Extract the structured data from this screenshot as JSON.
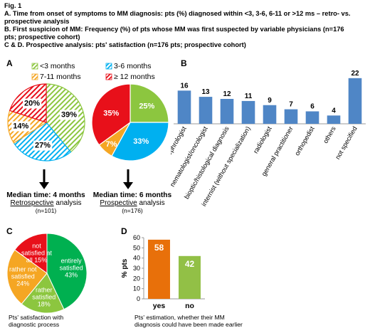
{
  "figure": {
    "fig_label": "Fig. 1",
    "line_a": "A. Time from onset of symptoms to MM diagnosis: pts (%) diagnosed within <3, 3-6, 6-11 or >12 ms – retro- vs.",
    "line_a2": "prospective analysis",
    "line_b": "B. First suspicion of MM: Frequency (%) of pts whose MM was first suspected by variable physicians (n=176",
    "line_b2": "pts; prospective cohort)",
    "line_cd": "C & D. Prospective analysis: pts' satisfaction  (n=176 pts; prospective cohort)"
  },
  "panel_letters": {
    "a": "A",
    "b": "B",
    "c": "C",
    "d": "D"
  },
  "legend_a": {
    "lt3": "<3 months",
    "m7_11": "7-11 months",
    "m3_6": "3-6 months",
    "ge12": "≥ 12 months"
  },
  "median_retro": {
    "title": "Median time: 4 months",
    "word": "Retrospective",
    "suffix": " analysis",
    "n": "(n=101)"
  },
  "median_pro": {
    "title": "Median time: 6 months",
    "word": "Prospective",
    "suffix": " analysis",
    "n": "(n=176)"
  },
  "caption_c": [
    "Pts' satisfaction  with",
    "diagnostic process"
  ],
  "caption_d": [
    "Pts' estimation, whether their MM",
    "diagnosis could have been made earlier"
  ],
  "colors": {
    "green": "#8cc63f",
    "green_dark": "#00b050",
    "blue": "#00b0f0",
    "orange": "#f5a623",
    "red": "#e8101a",
    "bar_blue": "#4f86c6",
    "d_orange": "#e8700a",
    "d_green": "#92c046"
  },
  "chart_data": [
    {
      "type": "pie",
      "panel": "A-retrospective",
      "labels": [
        "<3 months",
        "3-6 months",
        "7-11 months",
        "≥ 12 months"
      ],
      "values": [
        39,
        27,
        14,
        20
      ],
      "value_labels": [
        "39%",
        "27%",
        "14%",
        "20%"
      ],
      "fill": "hatched"
    },
    {
      "type": "pie",
      "panel": "A-prospective",
      "labels": [
        "<3 months",
        "3-6 months",
        "7-11 months",
        "≥ 12 months"
      ],
      "values": [
        25,
        33,
        7,
        35
      ],
      "value_labels": [
        "25%",
        "33%",
        "7%",
        "35%"
      ],
      "fill": "solid"
    },
    {
      "type": "bar",
      "panel": "B",
      "categories": [
        "nephrologist",
        "hematologist/oncologist",
        "bioptic/histological diagnosis",
        "internist (without specialization)",
        "radiologist",
        "general practitioner",
        "orthopedist",
        "others",
        "not specified"
      ],
      "values": [
        16,
        13,
        12,
        11,
        9,
        7,
        6,
        4,
        22
      ],
      "ylim": [
        0,
        24
      ]
    },
    {
      "type": "pie",
      "panel": "C",
      "labels": [
        "entirely satisfied",
        "rather satisfied",
        "rather not satisfied",
        "not satisfied at all"
      ],
      "values": [
        43,
        18,
        24,
        15
      ],
      "slice_text": [
        [
          "entirely",
          "satisfied",
          "43%"
        ],
        [
          "rather",
          "satisfied",
          "18%"
        ],
        [
          "rather not",
          "satisfied",
          "24%"
        ],
        [
          "not",
          "satisfied at",
          "all 15%"
        ]
      ]
    },
    {
      "type": "bar",
      "panel": "D",
      "categories": [
        "yes",
        "no"
      ],
      "values": [
        58,
        42
      ],
      "ylabel": "% pts",
      "ylim": [
        0,
        60
      ],
      "yticks": [
        0,
        10,
        20,
        30,
        40,
        50,
        60
      ]
    }
  ]
}
